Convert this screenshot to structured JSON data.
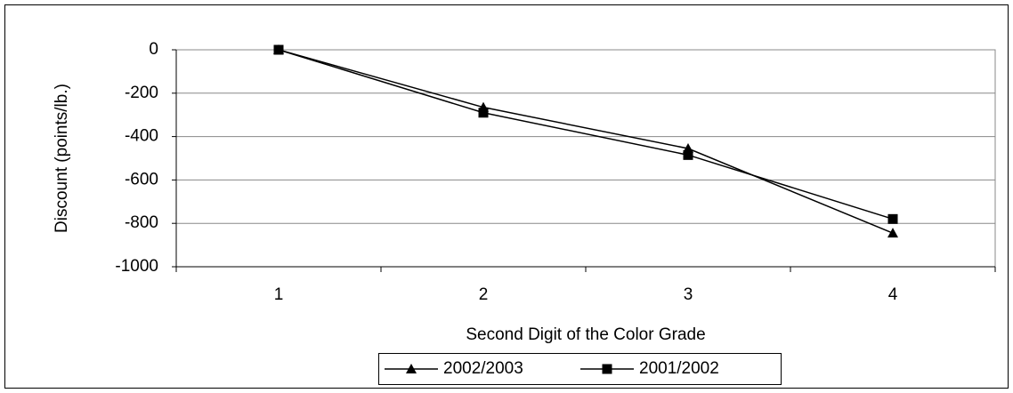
{
  "chart_data": {
    "type": "line",
    "y_label": "Discount (points/lb.)",
    "x_label": "Second Digit of the Color Grade",
    "categories": [
      "1",
      "2",
      "3",
      "4"
    ],
    "series": [
      {
        "name": "2002/2003",
        "color": "#000000",
        "marker": "triangle",
        "values": [
          0,
          -265,
          -455,
          -845
        ]
      },
      {
        "name": "2001/2002",
        "color": "#000000",
        "marker": "square",
        "values": [
          0,
          -290,
          -485,
          -780
        ]
      }
    ],
    "ylim": [
      -1000,
      0
    ],
    "yticks": [
      0,
      -200,
      -400,
      -600,
      -800,
      -1000
    ],
    "grid": true
  }
}
